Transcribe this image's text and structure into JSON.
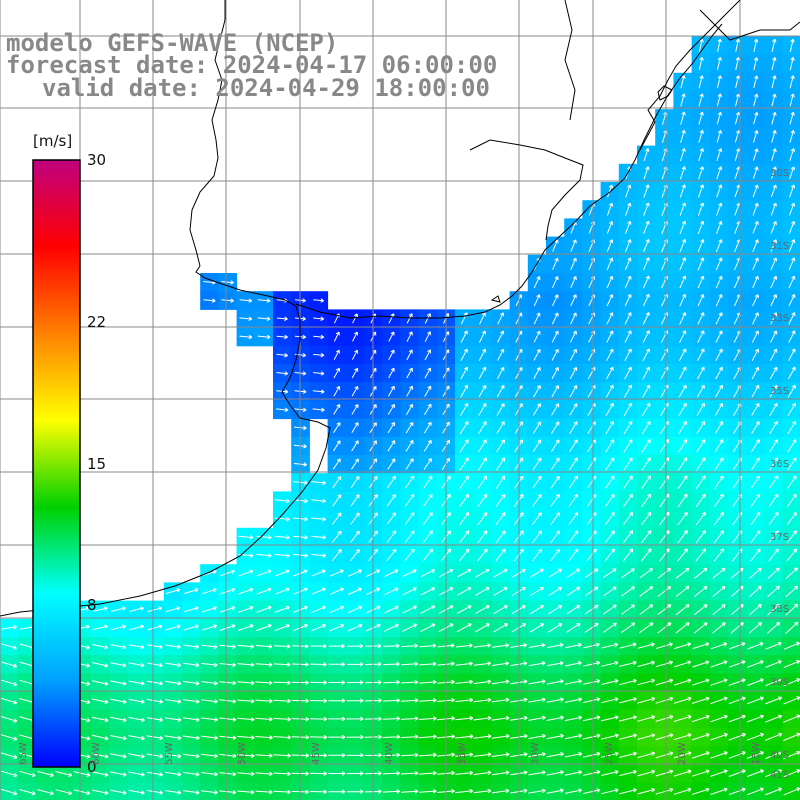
{
  "titles": {
    "line1": "modelo GEFS-WAVE (NCEP)",
    "line2": "forecast date: 2024-04-17 06:00:00",
    "line3": "valid date: 2024-04-29 18:00:00"
  },
  "colorbar": {
    "unit": "[m/s]",
    "min": 0,
    "max": 30,
    "ticks": [
      "0",
      "8",
      "15",
      "22",
      "30"
    ],
    "tick_values": [
      0,
      8,
      15,
      22,
      30
    ],
    "colors": [
      "#0000ff",
      "#00a0ff",
      "#00ffff",
      "#00d000",
      "#ffff00",
      "#ff8000",
      "#ff0000",
      "#c00080"
    ]
  },
  "grid": {
    "lon_labels": [
      "65W",
      "60W",
      "55W",
      "50W",
      "45W",
      "40W",
      "35W",
      "30W",
      "25W",
      "20W",
      "15W"
    ],
    "lat_labels": [
      "30S",
      "31S",
      "33S",
      "35S",
      "36S",
      "37S",
      "38S",
      "39S",
      "40S",
      "41S"
    ]
  },
  "field": {
    "variable": "wind speed",
    "land_color": "#ffffff",
    "coast_color": "#000000",
    "arrow_color": "#ffffff",
    "typical_speed_north": 4,
    "typical_speed_south": 12
  }
}
